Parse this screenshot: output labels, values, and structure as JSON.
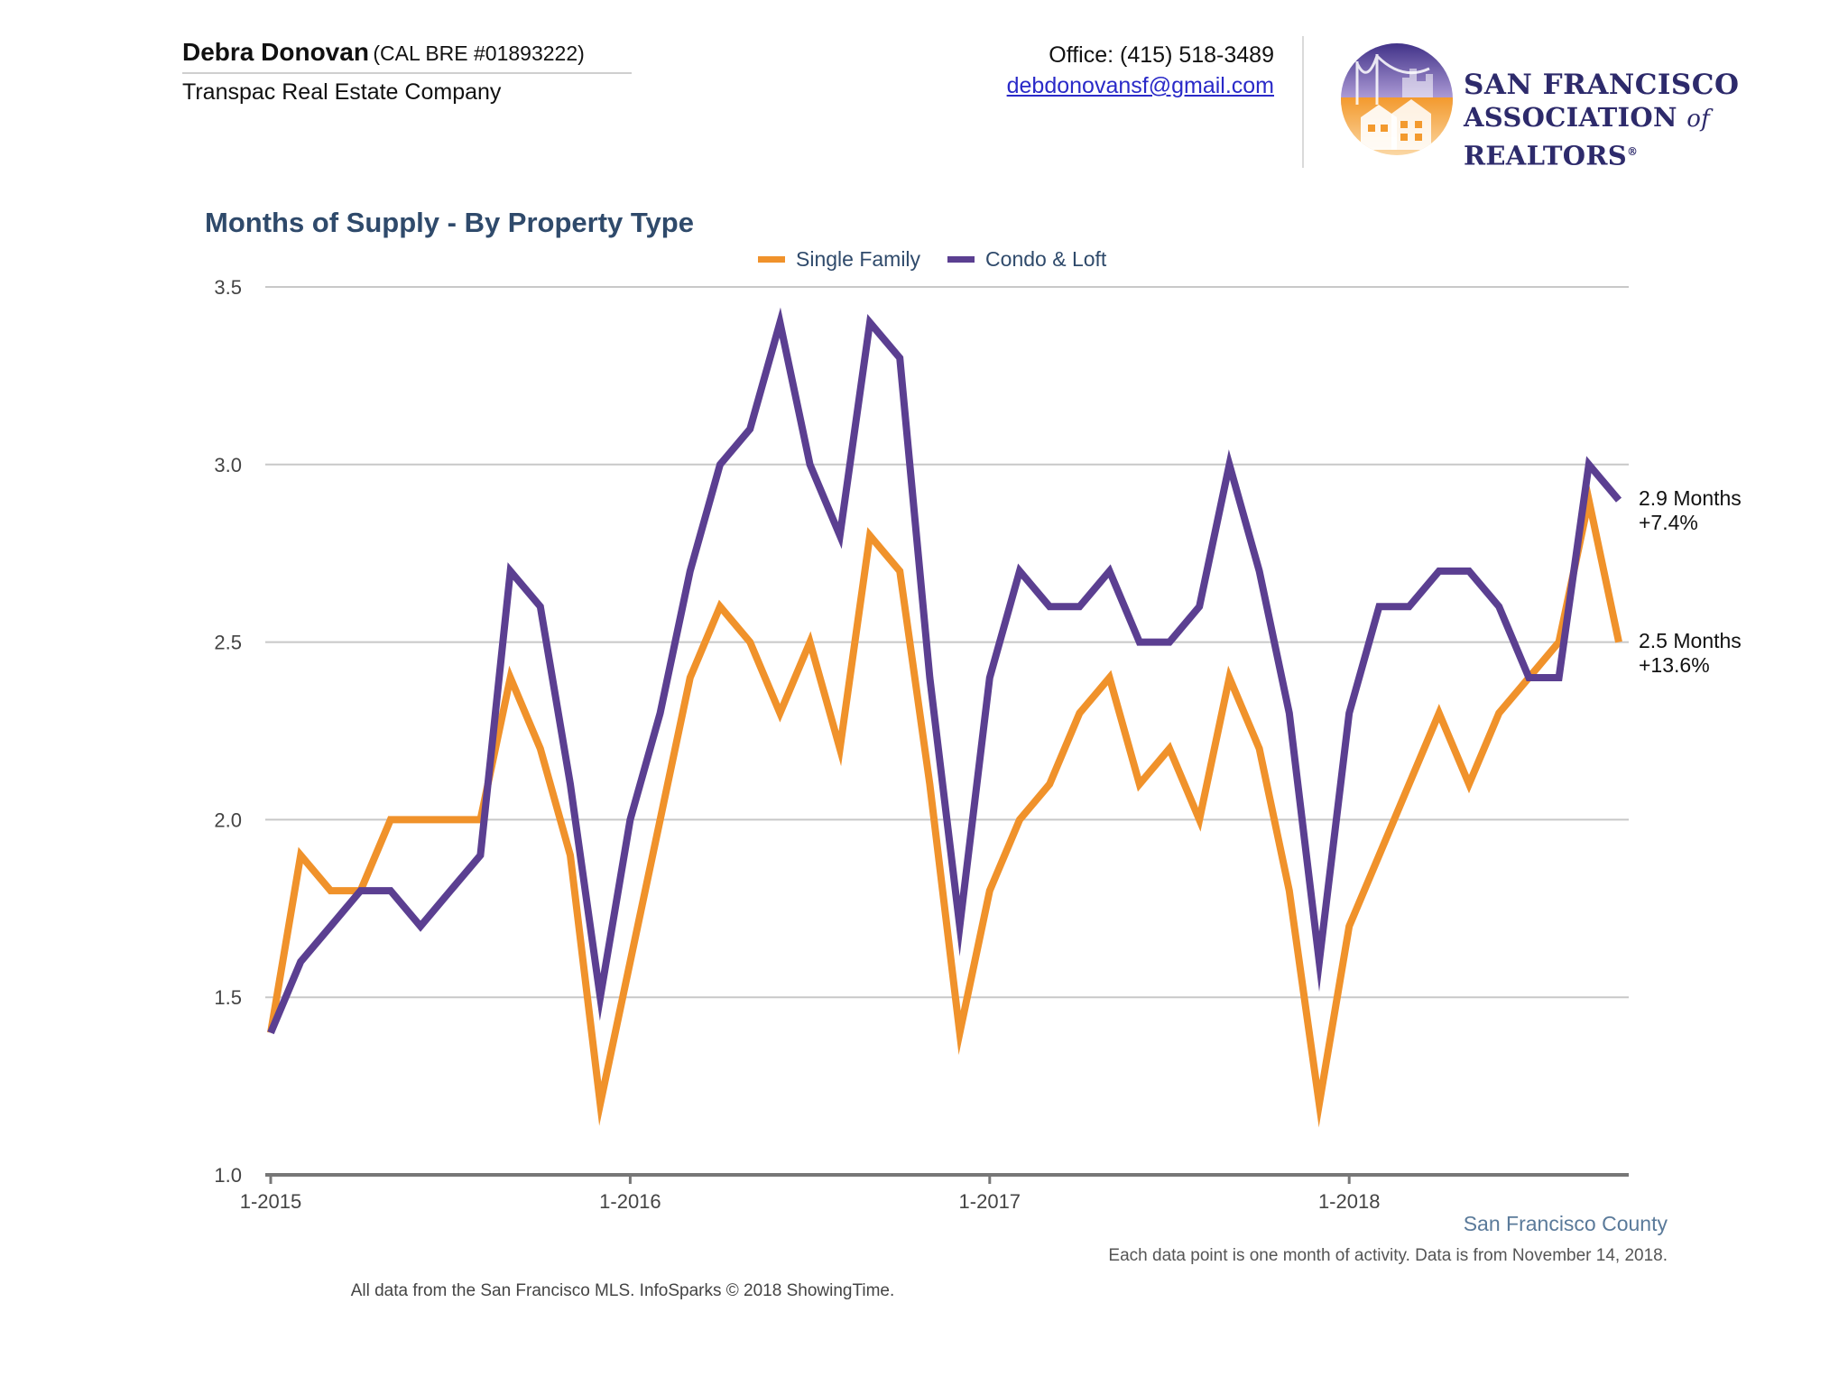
{
  "header": {
    "agent_name": "Debra Donovan",
    "agent_license": "(CAL BRE #01893222)",
    "company": "Transpac Real Estate Company",
    "office": "Office: (415) 518-3489",
    "email": "debdonovansf@gmail.com",
    "org_line1": "SAN FRANCISCO",
    "org_line2_a": "ASSOCIATION",
    "org_line2_of": "of",
    "org_line2_b": "REALTORS",
    "org_mark": "®"
  },
  "colors": {
    "single_family": "#f0922b",
    "condo_loft": "#5b3f91",
    "grid": "#c8c8c8",
    "axis": "#777777",
    "title": "#2f4a6b"
  },
  "chart_data": {
    "type": "line",
    "title": "Months of Supply - By Property Type",
    "x": [
      "1-2015",
      "2-2015",
      "3-2015",
      "4-2015",
      "5-2015",
      "6-2015",
      "7-2015",
      "8-2015",
      "9-2015",
      "10-2015",
      "11-2015",
      "12-2015",
      "1-2016",
      "2-2016",
      "3-2016",
      "4-2016",
      "5-2016",
      "6-2016",
      "7-2016",
      "8-2016",
      "9-2016",
      "10-2016",
      "11-2016",
      "12-2016",
      "1-2017",
      "2-2017",
      "3-2017",
      "4-2017",
      "5-2017",
      "6-2017",
      "7-2017",
      "8-2017",
      "9-2017",
      "10-2017",
      "11-2017",
      "12-2017",
      "1-2018",
      "2-2018",
      "3-2018",
      "4-2018",
      "5-2018",
      "6-2018",
      "7-2018",
      "8-2018",
      "9-2018",
      "10-2018"
    ],
    "x_tick_labels": [
      "1-2015",
      "1-2016",
      "1-2017",
      "1-2018"
    ],
    "y_ticks": [
      "1.0",
      "1.5",
      "2.0",
      "2.5",
      "3.0",
      "3.5"
    ],
    "ylim": [
      1.0,
      3.5
    ],
    "grid": true,
    "legend_position": "top-center",
    "series": [
      {
        "name": "Single Family",
        "color": "#f0922b",
        "values": [
          1.4,
          1.9,
          1.8,
          1.8,
          2.0,
          2.0,
          2.0,
          2.0,
          2.4,
          2.2,
          1.9,
          1.2,
          1.6,
          2.0,
          2.4,
          2.6,
          2.5,
          2.3,
          2.5,
          2.2,
          2.8,
          2.7,
          2.1,
          1.4,
          1.8,
          2.0,
          2.1,
          2.3,
          2.4,
          2.1,
          2.2,
          2.0,
          2.4,
          2.2,
          1.8,
          1.2,
          1.7,
          1.9,
          2.1,
          2.3,
          2.1,
          2.3,
          2.4,
          2.5,
          2.9,
          2.5
        ],
        "end_label": "2.5 Months",
        "end_change": "+13.6%"
      },
      {
        "name": "Condo & Loft",
        "color": "#5b3f91",
        "values": [
          1.4,
          1.6,
          1.7,
          1.8,
          1.8,
          1.7,
          1.8,
          1.9,
          2.7,
          2.6,
          2.1,
          1.5,
          2.0,
          2.3,
          2.7,
          3.0,
          3.1,
          3.4,
          3.0,
          2.8,
          3.4,
          3.3,
          2.4,
          1.7,
          2.4,
          2.7,
          2.6,
          2.6,
          2.7,
          2.5,
          2.5,
          2.6,
          3.0,
          2.7,
          2.3,
          1.6,
          2.3,
          2.6,
          2.6,
          2.7,
          2.7,
          2.6,
          2.4,
          2.4,
          3.0,
          2.9
        ],
        "end_label": "2.9 Months",
        "end_change": "+7.4%"
      }
    ]
  },
  "footer": {
    "county": "San Francisco County",
    "note1": "Each data point is one month of activity. Data is from November 14, 2018.",
    "note2": "All data from the San Francisco MLS. InfoSparks © 2018 ShowingTime."
  }
}
